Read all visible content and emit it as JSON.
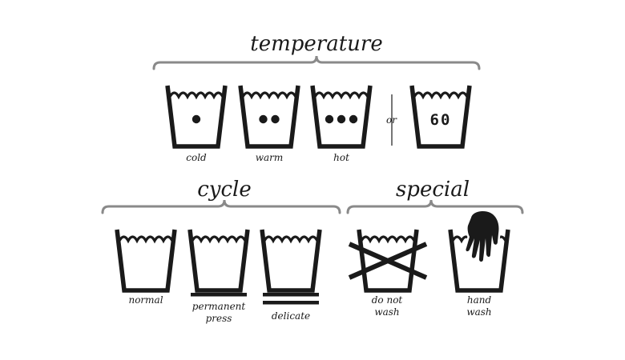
{
  "colors": {
    "ink": "#1a1a1a",
    "bracket": "#8a8a8a",
    "background": "#ffffff"
  },
  "sections": {
    "temperature": {
      "heading": "temperature"
    },
    "cycle": {
      "heading": "cycle"
    },
    "special": {
      "heading": "special"
    }
  },
  "temperature_symbols": {
    "cold": {
      "label": "cold",
      "dots": 1
    },
    "warm": {
      "label": "warm",
      "dots": 2
    },
    "hot": {
      "label": "hot",
      "dots": 3
    },
    "separator": "or",
    "numeric": {
      "value": "60"
    }
  },
  "cycle_symbols": {
    "normal": {
      "label": "normal",
      "underlines": 0
    },
    "permanent_press": {
      "label_line1": "permanent",
      "label_line2": "press",
      "underlines": 1
    },
    "delicate": {
      "label": "delicate",
      "underlines": 2
    }
  },
  "special_symbols": {
    "do_not_wash": {
      "label_line1": "do not",
      "label_line2": "wash",
      "icon": "cross-out-icon"
    },
    "hand_wash": {
      "label_line1": "hand",
      "label_line2": "wash",
      "icon": "hand-icon"
    }
  }
}
